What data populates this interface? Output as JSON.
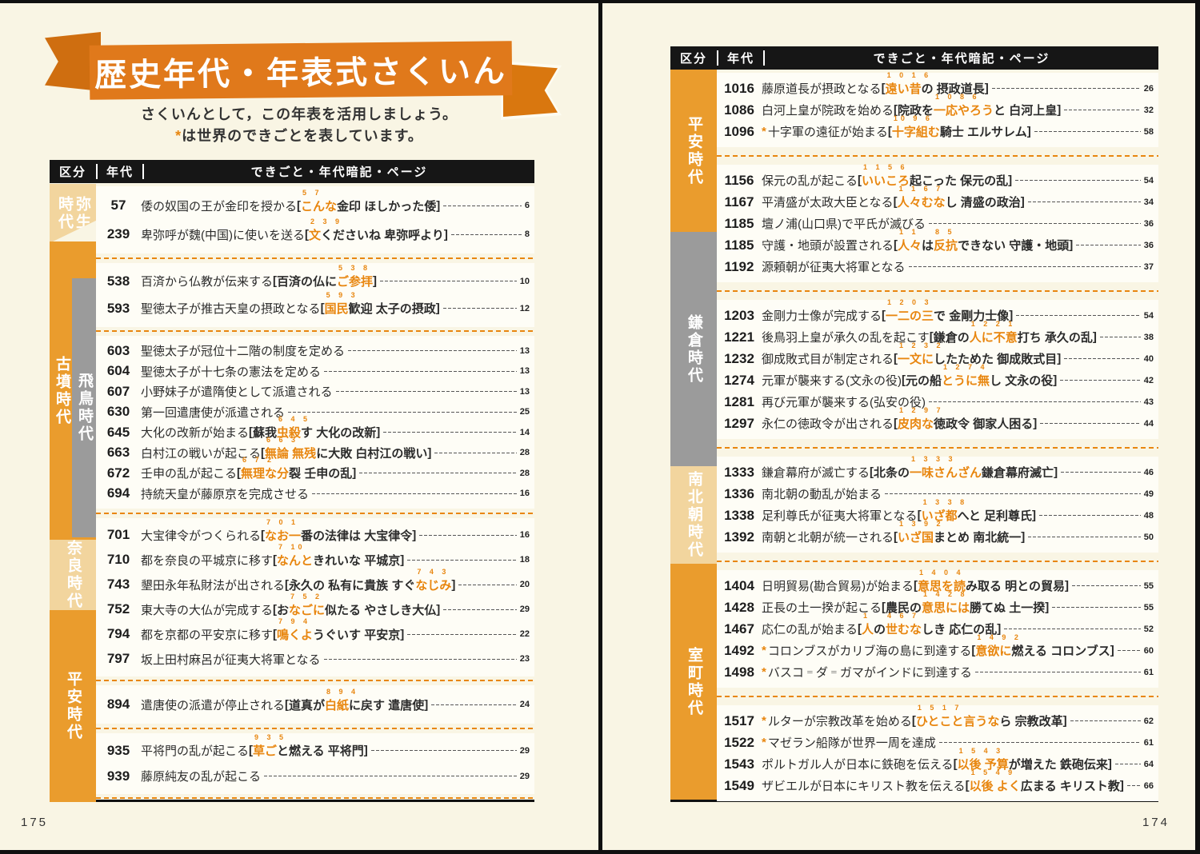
{
  "banner": {
    "title": "歴史年代・年表式さくいん"
  },
  "subtitle": {
    "line1": "さくいんとして，この年表を活用しましょう。",
    "star": "*",
    "line2": "は世界のできごとを表しています。"
  },
  "header": {
    "col1": "区分",
    "col2": "年代",
    "col3": "できごと・年代暗記・ページ"
  },
  "colors": {
    "accent_orange": "#e8860f",
    "banner_orange": "#e0791b",
    "sidebar_orange": "#ea9c2d",
    "era_tan": "#f2d59e",
    "era_gray": "#9b9b9b",
    "header_black": "#161616",
    "page_cream": "#f9f5e4",
    "row_white": "#fefdf6"
  },
  "left_page": {
    "page_number": "175",
    "eras": [
      {
        "label": "弥生時代"
      },
      {
        "label": "古墳時代"
      },
      {
        "label": "飛鳥時代"
      },
      {
        "label": "奈良時代"
      },
      {
        "label": "平安時代"
      }
    ],
    "groups": [
      {
        "rows": [
          {
            "y": "57",
            "pre": "倭の奴国の王が金印を授かる",
            "m": [
              [
                "こんな",
                "o",
                "5 7"
              ],
              [
                "金印 ほしかった倭",
                "k"
              ]
            ],
            "p": "6"
          },
          {
            "y": "239",
            "pre": "卑弥呼が魏(中国)に使いを送る",
            "m": [
              [
                "文",
                "o",
                "2 3 9"
              ],
              [
                "くださいね 卑弥呼より",
                "k"
              ]
            ],
            "p": "8"
          }
        ]
      },
      {
        "rows": [
          {
            "y": "538",
            "pre": "百済から仏教が伝来する",
            "m": [
              [
                "百済の仏に ",
                "k"
              ],
              [
                "ご参拝",
                "o",
                "5 3 8"
              ]
            ],
            "p": "10"
          },
          {
            "y": "593",
            "pre": "聖徳太子が推古天皇の摂政となる",
            "m": [
              [
                "国民",
                "o",
                "5 9 3"
              ],
              [
                "歓迎 太子の摂政",
                "k"
              ]
            ],
            "p": "12"
          }
        ]
      },
      {
        "rows": [
          {
            "y": "603",
            "pre": "聖徳太子が冠位十二階の制度を定める",
            "p": "13"
          },
          {
            "y": "604",
            "pre": "聖徳太子が十七条の憲法を定める",
            "p": "13"
          },
          {
            "y": "607",
            "pre": "小野妹子が遣隋使として派遣される",
            "p": "13"
          },
          {
            "y": "630",
            "pre": "第一回遣唐使が派遣される",
            "p": "25"
          },
          {
            "y": "645",
            "pre": "大化の改新が始まる",
            "m": [
              [
                "蘇我",
                "k"
              ],
              [
                "虫殺",
                "o",
                "6 4 5"
              ],
              [
                "す 大化の改新",
                "k"
              ]
            ],
            "p": "14"
          },
          {
            "y": "663",
            "pre": "白村江の戦いが起こる",
            "m": [
              [
                "無論 無残",
                "o",
                "6 6 3"
              ],
              [
                "に大敗 白村江の戦い",
                "k"
              ]
            ],
            "p": "28"
          },
          {
            "y": "672",
            "pre": "壬申の乱が起こる",
            "m": [
              [
                "無理な分",
                "o",
                "6 7 2"
              ],
              [
                "裂 壬申の乱",
                "k"
              ]
            ],
            "p": "28"
          },
          {
            "y": "694",
            "pre": "持統天皇が藤原京を完成させる",
            "p": "16"
          }
        ]
      },
      {
        "rows": [
          {
            "y": "701",
            "pre": "大宝律令がつくられる",
            "m": [
              [
                "なお一",
                "o",
                "7 0 1"
              ],
              [
                "番の法律は 大宝律令",
                "k"
              ]
            ],
            "p": "16"
          },
          {
            "y": "710",
            "pre": "都を奈良の平城京に移す",
            "m": [
              [
                "なんと",
                "o",
                "7 10"
              ],
              [
                "きれいな 平城京",
                "k"
              ]
            ],
            "p": "18"
          },
          {
            "y": "743",
            "pre": "墾田永年私財法が出される",
            "m": [
              [
                "永久の 私有に貴族 すぐ",
                "k"
              ],
              [
                "なじみ",
                "o",
                "7 4 3"
              ]
            ],
            "p": "20"
          },
          {
            "y": "752",
            "pre": "東大寺の大仏が完成する",
            "m": [
              [
                "お",
                "k"
              ],
              [
                "なごに",
                "o",
                "7 5 2"
              ],
              [
                "似たる やさしき大仏",
                "k"
              ]
            ],
            "p": "29"
          },
          {
            "y": "794",
            "pre": "都を京都の平安京に移す",
            "m": [
              [
                "鳴くよ",
                "o",
                "7 9 4"
              ],
              [
                " うぐいす 平安京",
                "k"
              ]
            ],
            "p": "22"
          },
          {
            "y": "797",
            "pre": "坂上田村麻呂が征夷大将軍となる",
            "p": "23"
          }
        ]
      },
      {
        "rows": [
          {
            "y": "894",
            "pre": "遣唐使の派遣が停止される",
            "m": [
              [
                "道真が ",
                "k"
              ],
              [
                "白紙",
                "o",
                "8 9 4"
              ],
              [
                "に戻す 遣唐使",
                "k"
              ]
            ],
            "p": "24"
          }
        ]
      },
      {
        "rows": [
          {
            "y": "935",
            "pre": "平将門の乱が起こる",
            "m": [
              [
                "草ご",
                "o",
                "9 3 5"
              ],
              [
                "と燃える 平将門",
                "k"
              ]
            ],
            "p": "29"
          },
          {
            "y": "939",
            "pre": "藤原純友の乱が起こる",
            "p": "29"
          }
        ]
      }
    ]
  },
  "right_page": {
    "page_number": "174",
    "eras": [
      {
        "label": "平安時代"
      },
      {
        "label": "鎌倉時代"
      },
      {
        "label": "南北朝時代"
      },
      {
        "label": "室町時代"
      }
    ],
    "groups": [
      {
        "rows": [
          {
            "y": "1016",
            "pre": "藤原道長が摂政となる",
            "m": [
              [
                "遠い昔",
                "o",
                "1 0 1 6"
              ],
              [
                "の 摂政道長",
                "k"
              ]
            ],
            "p": "26"
          },
          {
            "y": "1086",
            "pre": "白河上皇が院政を始める",
            "m": [
              [
                "院政を ",
                "k"
              ],
              [
                "一応やろう",
                "o",
                "1 0 8 6"
              ],
              [
                "と 白河上皇",
                "k"
              ]
            ],
            "p": "32"
          },
          {
            "y": "1096",
            "s": true,
            "pre": "十字軍の遠征が始まる",
            "m": [
              [
                "十字組む",
                "o",
                "10 9 6"
              ],
              [
                "騎士 エルサレム",
                "k"
              ]
            ],
            "p": "58"
          }
        ]
      },
      {
        "rows": [
          {
            "y": "1156",
            "pre": "保元の乱が起こる",
            "m": [
              [
                "いいころ",
                "o",
                "1 1 5 6"
              ],
              [
                "起こった 保元の乱",
                "k"
              ]
            ],
            "p": "54"
          },
          {
            "y": "1167",
            "pre": "平清盛が太政大臣となる",
            "m": [
              [
                "人々むな",
                "o",
                "1 1 6 7"
              ],
              [
                "し 清盛の政治",
                "k"
              ]
            ],
            "p": "34"
          },
          {
            "y": "1185",
            "pre": "壇ノ浦(山口県)で平氏が滅びる",
            "p": "36"
          },
          {
            "y": "1185",
            "pre": "守護・地頭が設置される",
            "m": [
              [
                "人々",
                "o",
                "1 1"
              ],
              [
                "は ",
                "k"
              ],
              [
                "反抗",
                "o",
                "8 5"
              ],
              [
                "できない 守護・地頭",
                "k"
              ]
            ],
            "p": "36"
          },
          {
            "y": "1192",
            "pre": "源頼朝が征夷大将軍となる",
            "p": "37"
          }
        ]
      },
      {
        "rows": [
          {
            "y": "1203",
            "pre": "金剛力士像が完成する",
            "m": [
              [
                "一二の三",
                "o",
                "1 2 0 3"
              ],
              [
                "で 金剛力士像",
                "k"
              ]
            ],
            "p": "54"
          },
          {
            "y": "1221",
            "pre": "後鳥羽上皇が承久の乱を起こす",
            "m": [
              [
                "鎌倉の ",
                "k"
              ],
              [
                "人に不意",
                "o",
                "1 2 2 1"
              ],
              [
                "打ち 承久の乱",
                "k"
              ]
            ],
            "p": "38"
          },
          {
            "y": "1232",
            "pre": "御成敗式目が制定される",
            "m": [
              [
                "一文に",
                "o",
                "1 2 3 2"
              ],
              [
                "したためた 御成敗式目",
                "k"
              ]
            ],
            "p": "40"
          },
          {
            "y": "1274",
            "pre": "元軍が襲来する(文永の役)",
            "m": [
              [
                "元の船 ",
                "k"
              ],
              [
                "とうに無",
                "o",
                "1 2 7 4"
              ],
              [
                "し 文永の役",
                "k"
              ]
            ],
            "p": "42"
          },
          {
            "y": "1281",
            "pre": "再び元軍が襲来する(弘安の役)",
            "p": "43"
          },
          {
            "y": "1297",
            "pre": "永仁の徳政令が出される",
            "m": [
              [
                "皮肉な",
                "o",
                "1 2 9 7"
              ],
              [
                "徳政令 御家人困る",
                "k"
              ]
            ],
            "p": "44"
          }
        ]
      },
      {
        "rows": [
          {
            "y": "1333",
            "pre": "鎌倉幕府が滅亡する",
            "m": [
              [
                "北条の",
                "k"
              ],
              [
                "一味さんざん",
                "o",
                "1 3 3 3"
              ],
              [
                " 鎌倉幕府滅亡",
                "k"
              ]
            ],
            "p": "46"
          },
          {
            "y": "1336",
            "pre": "南北朝の動乱が始まる",
            "p": "49"
          },
          {
            "y": "1338",
            "pre": "足利尊氏が征夷大将軍となる",
            "m": [
              [
                "いざ都",
                "o",
                "1 3 3 8"
              ],
              [
                "へと 足利尊氏",
                "k"
              ]
            ],
            "p": "48"
          },
          {
            "y": "1392",
            "pre": "南朝と北朝が統一される",
            "m": [
              [
                "いざ国",
                "o",
                "1 3 9 2"
              ],
              [
                "まとめ 南北統一",
                "k"
              ]
            ],
            "p": "50"
          }
        ]
      },
      {
        "rows": [
          {
            "y": "1404",
            "pre": "日明貿易(勘合貿易)が始まる",
            "m": [
              [
                "意思を読",
                "o",
                "1 4 0 4"
              ],
              [
                "み取る 明との貿易",
                "k"
              ]
            ],
            "p": "55"
          },
          {
            "y": "1428",
            "pre": "正長の土一揆が起こる",
            "m": [
              [
                "農民の",
                "k"
              ],
              [
                "意思には",
                "o",
                "1 4 2 8"
              ],
              [
                " 勝てぬ 土一揆",
                "k"
              ]
            ],
            "p": "55"
          },
          {
            "y": "1467",
            "pre": "応仁の乱が始まる",
            "m": [
              [
                "人",
                "o",
                "1"
              ],
              [
                "の",
                "k"
              ],
              [
                "世むな",
                "o",
                "4 6 7"
              ],
              [
                "しき 応仁の乱",
                "k"
              ]
            ],
            "p": "52"
          },
          {
            "y": "1492",
            "s": true,
            "pre": "コロンブスがカリブ海の島に到達する",
            "m": [
              [
                "意欲に",
                "o",
                "1 4 9 2"
              ],
              [
                "燃える コロンブス",
                "k"
              ]
            ],
            "p": "60"
          },
          {
            "y": "1498",
            "s": true,
            "pre": "バスコ゠ダ゠ガマがインドに到達する",
            "p": "61"
          }
        ]
      },
      {
        "rows": [
          {
            "y": "1517",
            "s": true,
            "pre": "ルターが宗教改革を始める",
            "m": [
              [
                "ひとこと言うな",
                "o",
                "1 5 1 7"
              ],
              [
                "ら 宗教改革",
                "k"
              ]
            ],
            "p": "62"
          },
          {
            "y": "1522",
            "s": true,
            "pre": "マゼラン船隊が世界一周を達成",
            "p": "61"
          },
          {
            "y": "1543",
            "pre": "ポルトガル人が日本に鉄砲を伝える",
            "m": [
              [
                "以後 予算",
                "o",
                "1 5 4 3"
              ],
              [
                "が増えた 鉄砲伝来",
                "k"
              ]
            ],
            "p": "64"
          },
          {
            "y": "1549",
            "pre": "ザビエルが日本にキリスト教を伝える",
            "m": [
              [
                "以後 よく",
                "o",
                "1 5 4 9"
              ],
              [
                "広まる キリスト教",
                "k"
              ]
            ],
            "p": "66"
          }
        ]
      }
    ]
  }
}
